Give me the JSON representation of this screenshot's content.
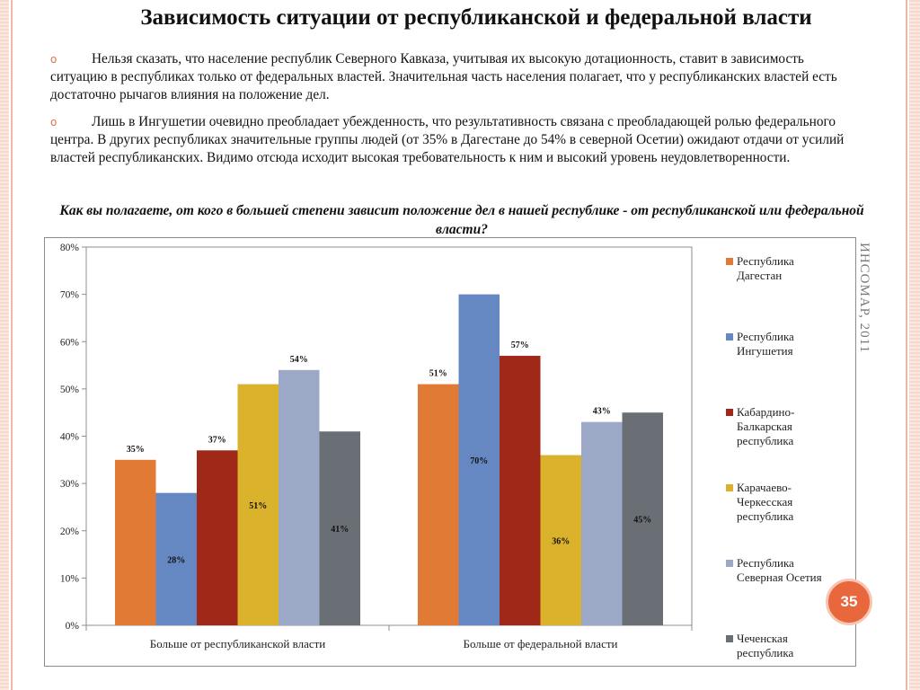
{
  "slide": {
    "title": "Зависимость ситуации от республиканской и федеральной власти",
    "bullets": [
      "Нельзя сказать, что население республик Северного Кавказа, учитывая их высокую дотационность, ставит в зависимость ситуацию в республиках только от федеральных властей. Значительная часть населения полагает, что у республиканских властей есть достаточно рычагов влияния на положение дел.",
      "Лишь в Ингушетии очевидно преобладает убежденность, что результативность связана с преобладающей ролью федерального центра.  В других республиках значительные группы людей (от 35% в Дагестане до 54% в северной Осетии) ожидают отдачи от усилий властей республиканских. Видимо отсюда исходит высокая требовательность к ним и высокий уровень неудовлетворенности."
    ],
    "bullet_marker": "o",
    "question": "Как вы полагаете, от кого в большей степени зависит положение дел в нашей республике - от республиканской или федеральной власти?",
    "watermark": "ИНСОМАР, 2011",
    "page_number": "35",
    "accent_color": "#e8673d"
  },
  "chart_data": {
    "type": "bar",
    "title": "",
    "xlabel": "",
    "ylabel": "",
    "ylim": [
      0,
      80
    ],
    "yticks": [
      "0%",
      "10%",
      "20%",
      "30%",
      "40%",
      "50%",
      "60%",
      "70%",
      "80%"
    ],
    "categories": [
      "Больше от республиканской власти",
      "Больше от федеральной власти"
    ],
    "series": [
      {
        "name": "Республика Дагестан",
        "legend_lines": [
          "Республика",
          "Дагестан"
        ],
        "color": "#e07a35",
        "values": [
          35,
          51
        ],
        "labels": [
          "35%",
          "51%"
        ],
        "label_pos": [
          "above",
          "above"
        ]
      },
      {
        "name": "Республика Ингушетия",
        "legend_lines": [
          "Республика",
          "Ингушетия"
        ],
        "color": "#6688c2",
        "values": [
          28,
          70
        ],
        "labels": [
          "28%",
          "70%"
        ],
        "label_pos": [
          "inside",
          "inside"
        ]
      },
      {
        "name": "Кабардино-Балкарская республика",
        "legend_lines": [
          "Кабардино-",
          "Балкарская",
          "республика"
        ],
        "color": "#a02818",
        "values": [
          37,
          57
        ],
        "labels": [
          "37%",
          "57%"
        ],
        "label_pos": [
          "above",
          "above"
        ]
      },
      {
        "name": "Карачаево-Черкесская республика",
        "legend_lines": [
          "Карачаево-",
          "Черкесская",
          "республика"
        ],
        "color": "#dbb22c",
        "values": [
          51,
          36
        ],
        "labels": [
          "51%",
          "36%"
        ],
        "label_pos": [
          "inside",
          "inside"
        ]
      },
      {
        "name": "Республика Северная Осетия",
        "legend_lines": [
          "Республика",
          "Северная Осетия"
        ],
        "color": "#9ba8c6",
        "values": [
          54,
          43
        ],
        "labels": [
          "54%",
          "43%"
        ],
        "label_pos": [
          "above",
          "above"
        ]
      },
      {
        "name": "Чеченская республика",
        "legend_lines": [
          "Чеченская",
          "республика"
        ],
        "color": "#6a6f76",
        "values": [
          41,
          45
        ],
        "labels": [
          "41%",
          "45%"
        ],
        "label_pos": [
          "inside",
          "inside"
        ]
      }
    ],
    "grid": false,
    "legend_position": "right"
  }
}
